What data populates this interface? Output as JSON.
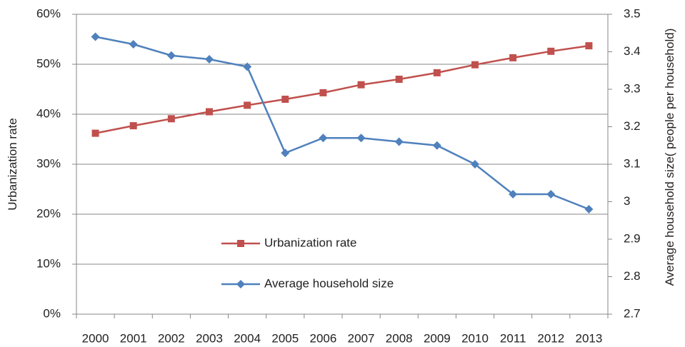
{
  "chart_data": {
    "type": "line",
    "categories": [
      "2000",
      "2001",
      "2002",
      "2003",
      "2004",
      "2005",
      "2006",
      "2007",
      "2008",
      "2009",
      "2010",
      "2011",
      "2012",
      "2013"
    ],
    "series": [
      {
        "name": "Urbanization rate",
        "color": "#c0504d",
        "marker": "square",
        "values": [
          36.2,
          37.7,
          39.1,
          40.5,
          41.8,
          43.0,
          44.3,
          45.9,
          47.0,
          48.3,
          49.9,
          51.3,
          52.6,
          53.7
        ]
      },
      {
        "name": "Average household size",
        "color": "#4f81bd",
        "marker": "diamond",
        "axis": "y2",
        "values": [
          3.44,
          3.42,
          3.39,
          3.38,
          3.36,
          3.13,
          3.17,
          3.17,
          3.16,
          3.15,
          3.1,
          3.02,
          3.02,
          2.98
        ]
      }
    ],
    "ylabel": "Urbanization rate",
    "y2label": "Average household size( people per household)",
    "ylim": [
      0,
      60
    ],
    "yticks": [
      {
        "value": 0,
        "label": "0%"
      },
      {
        "value": 10,
        "label": "10%"
      },
      {
        "value": 20,
        "label": "20%"
      },
      {
        "value": 30,
        "label": "30%"
      },
      {
        "value": 40,
        "label": "40%"
      },
      {
        "value": 50,
        "label": "50%"
      },
      {
        "value": 60,
        "label": "60%"
      }
    ],
    "y2lim": [
      2.7,
      3.5
    ],
    "y2ticks": [
      2.7,
      2.8,
      2.9,
      3,
      3.1,
      3.2,
      3.3,
      3.4,
      3.5
    ],
    "grid": true,
    "legend": "lower left"
  }
}
